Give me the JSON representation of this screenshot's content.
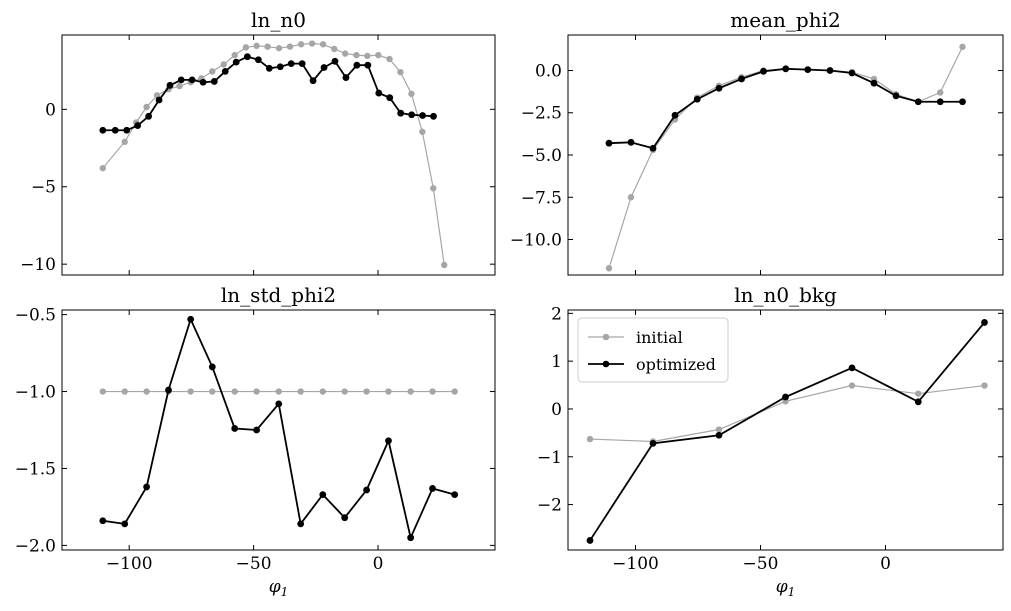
{
  "chart_data": [
    {
      "type": "line",
      "title": "ln_n0",
      "xlabel": "",
      "ylabel": "",
      "xlim": [
        -127,
        47
      ],
      "ylim": [
        -10.7,
        4.8
      ],
      "xticks": [
        -100,
        -50,
        0
      ],
      "xtick_labels": [
        "",
        "",
        ""
      ],
      "yticks": [
        0,
        -5,
        -10
      ],
      "ytick_labels": [
        "0",
        "−5",
        "−10"
      ],
      "series": [
        {
          "name": "initial",
          "color": "#a6a6a6",
          "x": [
            -110.6,
            -101.8,
            -97.2,
            -93.0,
            -88.8,
            -84.2,
            -79.8,
            -75.3,
            -71.0,
            -66.6,
            -62.0,
            -57.6,
            -53.1,
            -48.8,
            -44.4,
            -39.8,
            -35.4,
            -30.9,
            -26.5,
            -22.1,
            -17.6,
            -13.2,
            -8.7,
            -4.3,
            0.1,
            4.6,
            9.0,
            13.4,
            17.8,
            22.2,
            26.6,
            31.0
          ],
          "y": [
            -3.8,
            -2.1,
            -0.85,
            0.15,
            0.9,
            1.3,
            1.5,
            1.75,
            2.0,
            2.45,
            2.9,
            3.5,
            4.0,
            4.1,
            4.05,
            3.95,
            4.05,
            4.2,
            4.25,
            4.2,
            3.9,
            3.6,
            3.5,
            3.45,
            3.5,
            3.25,
            2.4,
            1.0,
            -1.45,
            -5.1,
            -10.05,
            null
          ]
        },
        {
          "name": "optimized",
          "color": "#000000",
          "x": [
            -110.6,
            -105.6,
            -101.0,
            -96.6,
            -92.2,
            -88.0,
            -83.6,
            -79.1,
            -74.7,
            -70.3,
            -65.8,
            -61.4,
            -57.0,
            -52.5,
            -48.1,
            -43.7,
            -39.3,
            -34.9,
            -30.5,
            -26.1,
            -21.7,
            -17.3,
            -12.9,
            -8.5,
            -4.1,
            0.3,
            4.7,
            9.1,
            13.5,
            17.9,
            22.3,
            26.7
          ],
          "y": [
            -1.35,
            -1.35,
            -1.35,
            -1.05,
            -0.45,
            0.6,
            1.55,
            1.9,
            1.9,
            1.75,
            1.8,
            2.45,
            3.05,
            3.4,
            3.2,
            2.65,
            2.75,
            2.95,
            2.95,
            1.85,
            2.7,
            3.1,
            2.05,
            2.85,
            2.85,
            1.05,
            0.75,
            -0.25,
            -0.35,
            -0.4,
            -0.45,
            null
          ]
        }
      ],
      "grid": false
    },
    {
      "type": "line",
      "title": "mean_phi2",
      "xlabel": "",
      "ylabel": "",
      "xlim": [
        -127,
        47
      ],
      "ylim": [
        -12.1,
        2.1
      ],
      "xticks": [
        -100,
        -50,
        0
      ],
      "xtick_labels": [
        "",
        "",
        ""
      ],
      "yticks": [
        0,
        -2.5,
        -5,
        -7.5,
        -10
      ],
      "ytick_labels": [
        "0.0",
        "−2.5",
        "−5.0",
        "−7.5",
        "−10.0"
      ],
      "series": [
        {
          "name": "initial",
          "color": "#a6a6a6",
          "x": [
            -110.6,
            -101.8,
            -93.0,
            -84.2,
            -75.3,
            -66.6,
            -57.6,
            -48.8,
            -39.9,
            -31.1,
            -22.2,
            -13.4,
            -4.6,
            4.2,
            13.1,
            21.9,
            30.8
          ],
          "y": [
            -11.7,
            -7.5,
            -4.7,
            -2.9,
            -1.6,
            -0.9,
            -0.4,
            0.0,
            0.1,
            0.05,
            0.0,
            -0.1,
            -0.5,
            -1.4,
            -1.85,
            -1.3,
            1.4
          ]
        },
        {
          "name": "optimized",
          "color": "#000000",
          "x": [
            -110.6,
            -101.8,
            -93.0,
            -84.2,
            -75.3,
            -66.6,
            -57.6,
            -48.8,
            -39.9,
            -31.1,
            -22.2,
            -13.4,
            -4.6,
            4.2,
            13.1,
            21.9,
            30.8
          ],
          "y": [
            -4.3,
            -4.25,
            -4.6,
            -2.65,
            -1.7,
            -1.05,
            -0.5,
            -0.05,
            0.1,
            0.05,
            0.0,
            -0.15,
            -0.75,
            -1.5,
            -1.85,
            -1.85,
            -1.85
          ]
        }
      ],
      "grid": false
    },
    {
      "type": "line",
      "title": "ln_std_phi2",
      "xlabel": "φ1",
      "ylabel": "",
      "xlim": [
        -127,
        47
      ],
      "ylim": [
        -2.03,
        -0.47
      ],
      "xticks": [
        -100,
        -50,
        0
      ],
      "xtick_labels": [
        "−100",
        "−50",
        "0"
      ],
      "yticks": [
        -0.5,
        -1.0,
        -1.5,
        -2.0
      ],
      "ytick_labels": [
        "−0.5",
        "−1.0",
        "−1.5",
        "−2.0"
      ],
      "series": [
        {
          "name": "initial",
          "color": "#a6a6a6",
          "x": [
            -110.6,
            -101.8,
            -93.0,
            -84.2,
            -75.3,
            -66.6,
            -57.6,
            -48.8,
            -39.9,
            -31.1,
            -22.2,
            -13.4,
            -4.6,
            4.2,
            13.1,
            21.9,
            30.8
          ],
          "y": [
            -1.0,
            -1.0,
            -1.0,
            -1.0,
            -1.0,
            -1.0,
            -1.0,
            -1.0,
            -1.0,
            -1.0,
            -1.0,
            -1.0,
            -1.0,
            -1.0,
            -1.0,
            -1.0,
            -1.0
          ]
        },
        {
          "name": "optimized",
          "color": "#000000",
          "x": [
            -110.6,
            -101.8,
            -93.0,
            -84.2,
            -75.3,
            -66.6,
            -57.6,
            -48.8,
            -39.9,
            -31.1,
            -22.2,
            -13.4,
            -4.6,
            4.2,
            13.1,
            21.9,
            30.8
          ],
          "y": [
            -1.84,
            -1.86,
            -1.62,
            -0.99,
            -0.53,
            -0.84,
            -1.24,
            -1.25,
            -1.08,
            -1.86,
            -1.67,
            -1.82,
            -1.64,
            -1.32,
            -1.95,
            -1.63,
            -1.67
          ]
        }
      ],
      "grid": false
    },
    {
      "type": "line",
      "title": "ln_n0_bkg",
      "xlabel": "φ1",
      "ylabel": "",
      "xlim": [
        -127,
        47
      ],
      "ylim": [
        -2.95,
        2.07
      ],
      "xticks": [
        -100,
        -50,
        0
      ],
      "xtick_labels": [
        "−100",
        "−50",
        "0"
      ],
      "yticks": [
        2,
        1,
        0,
        -1,
        -2
      ],
      "ytick_labels": [
        "2",
        "1",
        "0",
        "−1",
        "−2"
      ],
      "legend": {
        "position": "top-left",
        "entries": [
          "initial",
          "optimized"
        ]
      },
      "series": [
        {
          "name": "initial",
          "color": "#a6a6a6",
          "x": [
            -118.2,
            -93.0,
            -66.6,
            -40.0,
            -13.4,
            13.1,
            39.6
          ],
          "y": [
            -0.63,
            -0.68,
            -0.43,
            0.16,
            0.49,
            0.32,
            0.49
          ]
        },
        {
          "name": "optimized",
          "color": "#000000",
          "x": [
            -118.2,
            -93.0,
            -66.6,
            -40.0,
            -13.4,
            13.1,
            39.6
          ],
          "y": [
            -2.75,
            -0.72,
            -0.55,
            0.25,
            0.86,
            0.15,
            1.81
          ]
        }
      ],
      "grid": false
    }
  ]
}
